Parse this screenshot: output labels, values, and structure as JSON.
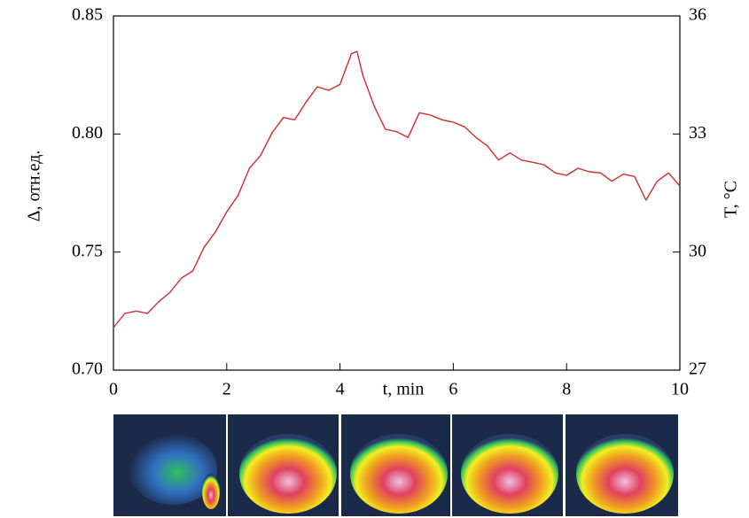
{
  "chart_data": {
    "type": "line",
    "x": [
      0,
      0.2,
      0.4,
      0.6,
      0.8,
      1.0,
      1.2,
      1.4,
      1.6,
      1.8,
      2.0,
      2.2,
      2.4,
      2.6,
      2.8,
      3.0,
      3.2,
      3.4,
      3.6,
      3.8,
      4.0,
      4.2,
      4.3,
      4.4,
      4.6,
      4.8,
      5.0,
      5.2,
      5.4,
      5.6,
      5.8,
      6.0,
      6.2,
      6.4,
      6.6,
      6.8,
      7.0,
      7.2,
      7.4,
      7.6,
      7.8,
      8.0,
      8.2,
      8.4,
      8.6,
      8.8,
      9.0,
      9.2,
      9.4,
      9.6,
      9.8,
      10.0
    ],
    "values": [
      0.718,
      0.724,
      0.725,
      0.724,
      0.729,
      0.733,
      0.739,
      0.742,
      0.752,
      0.7585,
      0.767,
      0.774,
      0.7855,
      0.791,
      0.8005,
      0.807,
      0.806,
      0.8135,
      0.82,
      0.8185,
      0.821,
      0.834,
      0.835,
      0.825,
      0.812,
      0.802,
      0.801,
      0.7985,
      0.809,
      0.808,
      0.806,
      0.805,
      0.803,
      0.7985,
      0.795,
      0.789,
      0.792,
      0.789,
      0.788,
      0.787,
      0.7835,
      0.7825,
      0.7855,
      0.784,
      0.7835,
      0.78,
      0.783,
      0.782,
      0.772,
      0.78,
      0.7835,
      0.778
    ],
    "color": "#d42a2a",
    "xlabel": "t, min",
    "ylabel": "Δ, отн.ед.",
    "y2label": "T, °C",
    "xlim": [
      0,
      10
    ],
    "xticks": [
      0,
      2,
      4,
      6,
      8,
      10
    ],
    "ylim": [
      0.7,
      0.85
    ],
    "yticks": [
      {
        "value": 0.7,
        "label": "0.70"
      },
      {
        "value": 0.75,
        "label": "0.75"
      },
      {
        "value": 0.8,
        "label": "0.80"
      },
      {
        "value": 0.85,
        "label": "0.85"
      }
    ],
    "y2lim": [
      27,
      36
    ],
    "y2ticks": [
      27,
      30,
      33,
      36
    ]
  }
}
